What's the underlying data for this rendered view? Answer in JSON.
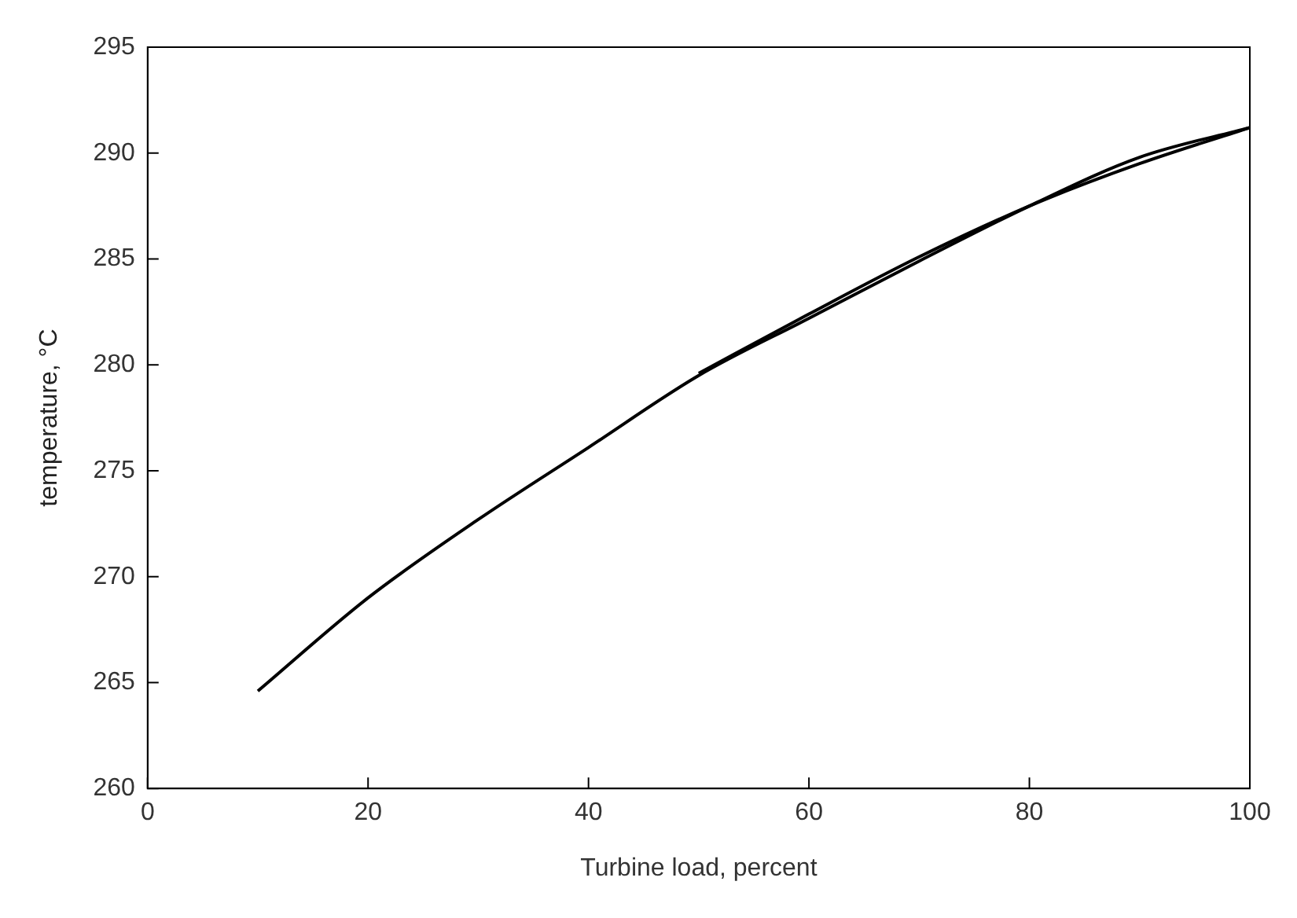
{
  "chart_data": {
    "type": "line",
    "xlabel": "Turbine load, percent",
    "ylabel": "temperature, °C",
    "xlim": [
      0,
      100
    ],
    "xticks": [
      0,
      20,
      40,
      60,
      80,
      100
    ],
    "ylim": [
      260,
      295
    ],
    "yticks": [
      260,
      265,
      270,
      275,
      280,
      285,
      290,
      295
    ],
    "grid": false,
    "legend": false,
    "marker": "none",
    "line_style": "solid",
    "series": [
      {
        "color": "#000000",
        "x": [
          10,
          20,
          30,
          40,
          50,
          60,
          70,
          80,
          90,
          100
        ],
        "values": [
          264.6,
          269.0,
          272.7,
          276.1,
          279.5,
          282.2,
          284.9,
          287.5,
          289.8,
          291.2
        ]
      },
      {
        "color": "#000000",
        "x": [
          50,
          60,
          70,
          80,
          90,
          100
        ],
        "values": [
          279.6,
          282.4,
          285.1,
          287.5,
          289.5,
          291.2
        ]
      }
    ]
  }
}
